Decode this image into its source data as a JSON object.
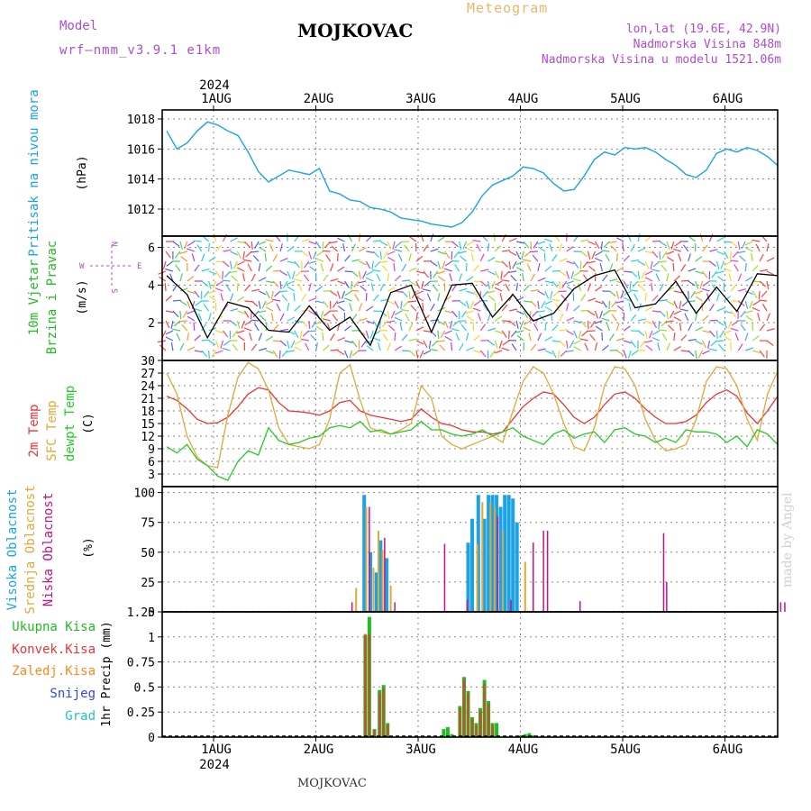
{
  "header": {
    "title": "MOJKOVAC",
    "meteogram": "Meteogram",
    "model_label": "Model",
    "model_name": "wrf–nmm_v3.9.1  e1km",
    "lonlat": "lon,lat (19.6E, 42.9N)",
    "altitude": "Nadmorska Visina 848m",
    "model_altitude": "Nadmorska Visina u modelu 1521.06m"
  },
  "footer": "MOJKOVAC",
  "watermark": "made by Angel",
  "colors": {
    "pressure": "#1aa3e8",
    "temp": "#ee3333",
    "sfc_temp": "#e0a838",
    "dewpoint": "#22cc22",
    "high_cloud": "#1aa3e8",
    "mid_cloud": "#e0a838",
    "low_cloud": "#cc1188",
    "total_precip": "#22bb22",
    "conv_precip": "#ee3333",
    "frz_precip": "#ff8822",
    "snow": "#3344ee",
    "hail": "#22c2c2",
    "purple": "#b04ccf"
  },
  "chart_data": [
    {
      "type": "line",
      "panel": "pressure",
      "ylabel_outer": "Pritisak na nivou mora",
      "ylabel_unit": "(hPa)",
      "ylim": [
        1010.2,
        1018.6
      ],
      "yticks": [
        "1012",
        "1014",
        "1016",
        "1018"
      ],
      "ytick_values": [
        1012,
        1014,
        1016,
        1018
      ],
      "x": [
        0,
        0.1,
        0.2,
        0.3,
        0.4,
        0.5,
        0.6,
        0.7,
        0.8,
        0.9,
        1.0,
        1.2,
        1.4,
        1.5,
        1.6,
        1.7,
        1.8,
        1.9,
        2.0,
        2.1,
        2.2,
        2.3,
        2.4,
        2.5,
        2.6,
        2.7,
        2.8,
        2.9,
        3.0,
        3.1,
        3.2,
        3.3,
        3.4,
        3.5,
        3.6,
        3.7,
        3.8,
        3.9,
        4.0,
        4.1,
        4.2,
        4.3,
        4.4,
        4.5,
        4.6,
        4.7,
        4.8,
        4.9,
        5.0,
        5.1,
        5.2,
        5.3,
        5.4,
        5.5,
        5.6,
        5.7,
        5.8,
        5.9,
        6.0
      ],
      "series": [
        {
          "values": [
            1017.2,
            1016.0,
            1016.4,
            1017.2,
            1017.8,
            1017.6,
            1017.2,
            1016.9,
            1015.8,
            1014.5,
            1013.8,
            1014.6,
            1014.3,
            1014.7,
            1013.2,
            1013.0,
            1012.6,
            1012.5,
            1012.1,
            1012.0,
            1011.8,
            1011.4,
            1011.3,
            1011.2,
            1011.0,
            1010.9,
            1010.8,
            1011.1,
            1011.8,
            1012.9,
            1013.6,
            1013.9,
            1014.2,
            1014.8,
            1014.7,
            1014.4,
            1013.7,
            1013.2,
            1013.3,
            1014.2,
            1015.3,
            1015.8,
            1015.6,
            1016.1,
            1016.0,
            1016.1,
            1015.8,
            1015.3,
            1014.9,
            1014.3,
            1014.1,
            1014.6,
            1015.7,
            1016.0,
            1015.8,
            1016.1,
            1015.9,
            1015.5,
            1014.9
          ]
        }
      ]
    },
    {
      "type": "line",
      "panel": "wind",
      "ylabel_outer_1": "10m Vjetar",
      "ylabel_outer_2": "Brzina i Pravac",
      "ylabel_unit": "(m/s)",
      "compass": {
        "n": "N",
        "s": "S",
        "e": "E",
        "w": "W"
      },
      "ylim": [
        0,
        6.6
      ],
      "yticks": [
        "2",
        "4",
        "6"
      ],
      "ytick_values": [
        2,
        4,
        6
      ],
      "x": [
        0,
        0.2,
        0.4,
        0.6,
        0.8,
        1.0,
        1.2,
        1.4,
        1.6,
        1.8,
        2.0,
        2.2,
        2.4,
        2.6,
        2.8,
        3.0,
        3.2,
        3.4,
        3.6,
        3.8,
        4.0,
        4.2,
        4.4,
        4.6,
        4.8,
        5.0,
        5.2,
        5.4,
        5.6,
        5.8,
        6.0
      ],
      "series": [
        {
          "values": [
            4.5,
            3.5,
            1.2,
            3.1,
            2.8,
            1.6,
            1.5,
            2.9,
            1.6,
            2.3,
            0.8,
            3.6,
            4.0,
            1.5,
            4.0,
            4.1,
            2.3,
            3.5,
            2.1,
            2.5,
            3.8,
            4.5,
            4.8,
            2.8,
            3.0,
            4.2,
            2.5,
            3.9,
            2.6,
            4.6,
            4.5
          ]
        }
      ]
    },
    {
      "type": "line",
      "panel": "temperature",
      "ylabel_outer_1": "2m Temp",
      "ylabel_outer_2": "SFC Temp",
      "ylabel_outer_3": "dewpt Temp",
      "ylabel_unit": "(C)",
      "ylim": [
        0,
        30
      ],
      "yticks": [
        "3",
        "6",
        "9",
        "12",
        "15",
        "18",
        "21",
        "24",
        "27",
        "30"
      ],
      "ytick_values": [
        3,
        6,
        9,
        12,
        15,
        18,
        21,
        24,
        27,
        30
      ],
      "x": [
        0,
        0.1,
        0.2,
        0.3,
        0.4,
        0.5,
        0.6,
        0.7,
        0.8,
        0.9,
        1.0,
        1.1,
        1.2,
        1.3,
        1.4,
        1.5,
        1.6,
        1.7,
        1.8,
        1.9,
        2.0,
        2.1,
        2.2,
        2.3,
        2.4,
        2.5,
        2.6,
        2.7,
        2.8,
        2.9,
        3.0,
        3.1,
        3.2,
        3.3,
        3.4,
        3.5,
        3.6,
        3.7,
        3.8,
        3.9,
        4.0,
        4.1,
        4.2,
        4.3,
        4.4,
        4.5,
        4.6,
        4.7,
        4.8,
        4.9,
        5.0,
        5.1,
        5.2,
        5.3,
        5.4,
        5.5,
        5.6,
        5.7,
        5.8,
        5.9,
        6.0
      ],
      "series": [
        {
          "name": "2m Temp",
          "values": [
            21.5,
            20.5,
            18.5,
            16.0,
            15.0,
            15.2,
            16.5,
            19.0,
            22.0,
            23.5,
            23.0,
            20.0,
            18.0,
            17.8,
            17.5,
            17.0,
            18.0,
            20.0,
            20.5,
            18.0,
            17.0,
            16.5,
            16.0,
            15.5,
            16.0,
            18.5,
            16.5,
            15.0,
            14.5,
            13.5,
            13.0,
            13.0,
            12.5,
            13.0,
            16.0,
            19.0,
            21.0,
            22.5,
            22.0,
            19.5,
            16.5,
            15.0,
            16.5,
            19.5,
            22.0,
            22.5,
            21.0,
            18.5,
            16.5,
            15.0,
            15.0,
            15.5,
            17.0,
            20.0,
            22.0,
            23.0,
            21.5,
            17.5,
            15.0,
            18.0,
            21.5
          ]
        },
        {
          "name": "SFC Temp",
          "values": [
            27.0,
            22.0,
            12.0,
            7.0,
            5.0,
            4.5,
            17.0,
            26.0,
            29.5,
            28.0,
            23.0,
            14.0,
            10.0,
            9.5,
            9.0,
            10.0,
            16.0,
            27.0,
            29.0,
            20.5,
            14.0,
            13.0,
            12.5,
            13.5,
            15.0,
            24.0,
            21.0,
            12.0,
            10.0,
            9.0,
            10.0,
            11.0,
            12.0,
            10.5,
            18.0,
            25.0,
            28.5,
            27.0,
            22.0,
            15.0,
            9.5,
            8.5,
            14.0,
            24.0,
            28.5,
            28.0,
            24.0,
            16.0,
            11.0,
            8.5,
            9.0,
            10.0,
            16.0,
            25.0,
            28.5,
            28.0,
            24.0,
            16.0,
            11.0,
            22.0,
            27.5
          ]
        },
        {
          "name": "dewpt Temp",
          "values": [
            9.5,
            8.0,
            10.0,
            6.5,
            5.0,
            2.5,
            1.5,
            6.0,
            8.5,
            7.5,
            14.0,
            11.0,
            10.0,
            10.5,
            11.5,
            12.0,
            14.0,
            14.5,
            14.0,
            15.5,
            13.0,
            13.5,
            12.5,
            13.0,
            13.5,
            15.5,
            13.5,
            13.5,
            12.5,
            12.0,
            12.5,
            13.5,
            12.0,
            13.0,
            14.0,
            12.0,
            11.0,
            10.0,
            12.5,
            13.5,
            11.5,
            12.5,
            13.0,
            10.5,
            13.5,
            14.0,
            12.5,
            12.0,
            10.5,
            11.5,
            10.5,
            13.5,
            13.0,
            13.0,
            12.5,
            10.5,
            12.0,
            9.5,
            13.5,
            12.5,
            10.0
          ]
        }
      ]
    },
    {
      "type": "bar",
      "panel": "cloud",
      "ylabel_outer_1": "Visoka Oblacnost",
      "ylabel_outer_2": "Srednja Oblacnost",
      "ylabel_outer_3": "Niska Oblacnost",
      "ylabel_unit": "(%)",
      "ylim": [
        0,
        105
      ],
      "yticks": [
        "0",
        "25",
        "50",
        "75",
        "100"
      ],
      "ytick_values": [
        0,
        25,
        50,
        75,
        100
      ],
      "series": [
        {
          "name": "Visoka Oblacnost",
          "x": [
            1.94,
            2.0,
            2.06,
            2.1,
            2.16,
            2.96,
            3.0,
            3.06,
            3.12,
            3.16,
            3.2,
            3.24,
            3.28,
            3.32,
            3.36,
            3.4,
            3.44
          ],
          "values": [
            98,
            50,
            33,
            60,
            45,
            58,
            78,
            98,
            78,
            98,
            98,
            98,
            88,
            98,
            98,
            95,
            75
          ]
        },
        {
          "name": "Srednja Oblacnost",
          "x": [
            1.86,
            1.96,
            2.03,
            2.08,
            2.12,
            2.2,
            3.05,
            3.1,
            3.18,
            3.22,
            3.3,
            3.52
          ],
          "values": [
            20,
            88,
            37,
            68,
            52,
            22,
            57,
            92,
            92,
            88,
            68,
            42
          ]
        },
        {
          "name": "Niska Oblacnost",
          "x": [
            1.82,
            1.99,
            2.14,
            2.24,
            2.73,
            2.95,
            3.25,
            3.38,
            3.6,
            3.7,
            3.74,
            4.06,
            4.88,
            4.91,
            6.03,
            6.07
          ],
          "values": [
            8,
            88,
            62,
            8,
            57,
            10,
            80,
            10,
            58,
            68,
            68,
            9,
            66,
            25,
            8,
            8
          ]
        }
      ]
    },
    {
      "type": "bar",
      "panel": "precip",
      "ylabel_unit": "1hr Precip (mm)",
      "legend": [
        "Ukupna Kisa",
        "Konvek.Kisa",
        "Zaledj.Kisa",
        "Snijeg",
        "Grad"
      ],
      "ylim": [
        0,
        1.25
      ],
      "yticks": [
        "0",
        "0.25",
        "0.5",
        "0.75",
        "1",
        "1.25"
      ],
      "ytick_values": [
        0,
        0.25,
        0.5,
        0.75,
        1,
        1.25
      ],
      "xlabels_top": [
        "1AUG",
        "2AUG",
        "3AUG",
        "4AUG",
        "5AUG",
        "6AUG"
      ],
      "year_label": "2024",
      "series": [
        {
          "name": "Ukupna Kisa",
          "x": [
            1.95,
            1.99,
            2.04,
            2.09,
            2.13,
            2.17,
            2.72,
            2.76,
            2.8,
            2.88,
            2.92,
            2.96,
            3.0,
            3.04,
            3.08,
            3.12,
            3.16,
            3.2,
            3.24,
            3.48,
            3.52,
            3.56,
            3.6
          ],
          "values": [
            1.02,
            1.2,
            0.08,
            0.47,
            0.52,
            0.14,
            0.08,
            0.1,
            0.03,
            0.31,
            0.6,
            0.46,
            0.2,
            0.14,
            0.29,
            0.57,
            0.36,
            0.14,
            0.14,
            0.02,
            0.03,
            0.04,
            0.02
          ]
        },
        {
          "name": "Konvek.Kisa",
          "x": [
            1.95,
            1.99,
            2.04,
            2.09,
            2.13,
            2.17,
            2.88,
            2.92,
            2.96,
            3.0,
            3.04,
            3.08,
            3.12,
            3.16,
            3.2
          ],
          "values": [
            1.03,
            1.03,
            0.07,
            0.44,
            0.49,
            0.12,
            0.29,
            0.57,
            0.44,
            0.18,
            0.12,
            0.26,
            0.53,
            0.33,
            0.12
          ]
        }
      ],
      "xlabels_bottom": [
        "1AUG",
        "2AUG",
        "3AUG",
        "4AUG",
        "5AUG",
        "6AUG"
      ]
    }
  ]
}
